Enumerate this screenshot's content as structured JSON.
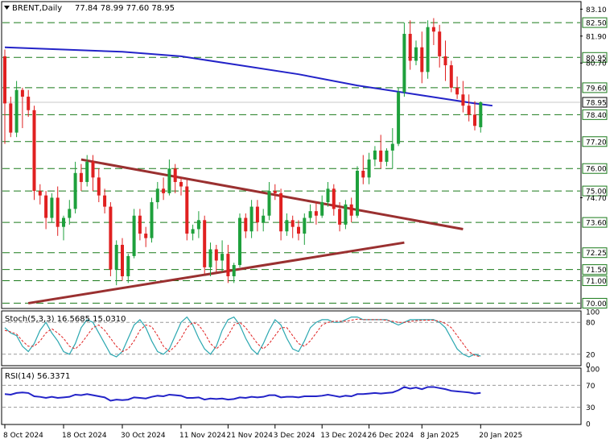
{
  "chart_data": [
    {
      "type": "candlestick",
      "title": "BRENT,Daily",
      "ohlc_readout": "77.84 78.99 77.60 78.95",
      "ylim": [
        69.8,
        83.4
      ],
      "last_price": "78.95",
      "price_levels": [
        "82.50",
        "80.95",
        "79.60",
        "78.40",
        "77.20",
        "76.00",
        "75.00",
        "73.60",
        "72.25",
        "71.50",
        "71.00",
        "70.00"
      ],
      "axis_ticks": [
        "83.10",
        "81.90",
        "80.70",
        "74.70"
      ],
      "x_tick_labels": [
        "8 Oct 2024",
        "18 Oct 2024",
        "30 Oct 2024",
        "11 Nov 2024",
        "21 Nov 2024",
        "3 Dec 2024",
        "13 Dec 2024",
        "26 Dec 2024",
        "8 Jan 2025",
        "20 Jan 2025"
      ],
      "x_tick_index": [
        0,
        10,
        20,
        30,
        38,
        46,
        54,
        62,
        71,
        81
      ],
      "candles": [
        [
          81.0,
          81.3,
          77.1,
          78.9
        ],
        [
          78.9,
          79.2,
          77.4,
          77.6
        ],
        [
          77.6,
          79.9,
          77.4,
          79.5
        ],
        [
          79.5,
          79.6,
          77.8,
          79.2
        ],
        [
          79.2,
          79.5,
          78.3,
          78.6
        ],
        [
          78.6,
          78.8,
          74.6,
          75.0
        ],
        [
          75.0,
          75.3,
          74.4,
          74.8
        ],
        [
          74.8,
          75.0,
          73.3,
          73.8
        ],
        [
          73.8,
          74.9,
          73.6,
          74.7
        ],
        [
          74.7,
          75.2,
          73.0,
          73.4
        ],
        [
          73.4,
          73.9,
          72.8,
          73.8
        ],
        [
          73.8,
          74.6,
          73.5,
          74.2
        ],
        [
          74.2,
          76.3,
          74.0,
          75.8
        ],
        [
          75.8,
          76.2,
          75.0,
          75.4
        ],
        [
          75.4,
          76.6,
          75.2,
          76.3
        ],
        [
          76.3,
          76.6,
          75.0,
          75.6
        ],
        [
          75.6,
          76.0,
          74.5,
          74.8
        ],
        [
          74.8,
          75.1,
          74.0,
          74.3
        ],
        [
          74.3,
          74.5,
          71.2,
          71.5
        ],
        [
          71.5,
          72.8,
          70.8,
          72.6
        ],
        [
          72.6,
          72.9,
          71.0,
          71.2
        ],
        [
          71.2,
          72.2,
          70.9,
          72.1
        ],
        [
          72.1,
          74.2,
          72.0,
          73.9
        ],
        [
          73.9,
          74.2,
          72.8,
          73.1
        ],
        [
          73.1,
          73.4,
          72.5,
          72.9
        ],
        [
          72.9,
          74.7,
          72.7,
          74.5
        ],
        [
          74.5,
          75.4,
          74.2,
          75.1
        ],
        [
          75.1,
          75.6,
          74.6,
          74.9
        ],
        [
          74.9,
          76.4,
          74.8,
          76.0
        ],
        [
          76.0,
          76.2,
          74.9,
          75.4
        ],
        [
          75.4,
          75.6,
          74.8,
          75.2
        ],
        [
          75.2,
          75.5,
          72.8,
          73.1
        ],
        [
          73.1,
          73.5,
          72.8,
          73.3
        ],
        [
          73.3,
          74.1,
          72.9,
          73.7
        ],
        [
          73.7,
          73.9,
          71.3,
          71.6
        ],
        [
          71.6,
          72.7,
          71.2,
          72.4
        ],
        [
          72.4,
          72.6,
          71.4,
          71.9
        ],
        [
          71.9,
          72.8,
          71.4,
          72.2
        ],
        [
          72.2,
          72.6,
          70.9,
          71.2
        ],
        [
          71.2,
          71.8,
          70.9,
          71.7
        ],
        [
          71.7,
          74.0,
          71.6,
          73.8
        ],
        [
          73.8,
          74.0,
          72.9,
          73.2
        ],
        [
          73.2,
          74.6,
          72.9,
          74.3
        ],
        [
          74.3,
          74.6,
          73.2,
          73.6
        ],
        [
          73.6,
          74.2,
          73.2,
          73.9
        ],
        [
          73.9,
          75.4,
          73.7,
          75.0
        ],
        [
          75.0,
          75.3,
          74.6,
          74.9
        ],
        [
          74.9,
          75.1,
          72.8,
          73.2
        ],
        [
          73.2,
          74.0,
          73.0,
          73.7
        ],
        [
          73.7,
          73.9,
          72.9,
          73.4
        ],
        [
          73.4,
          73.7,
          72.8,
          73.1
        ],
        [
          73.1,
          74.0,
          72.6,
          73.8
        ],
        [
          73.8,
          74.4,
          73.6,
          74.1
        ],
        [
          74.1,
          74.5,
          73.5,
          73.9
        ],
        [
          73.9,
          74.8,
          73.8,
          74.5
        ],
        [
          74.5,
          75.4,
          74.3,
          75.1
        ],
        [
          75.1,
          75.3,
          73.9,
          74.2
        ],
        [
          74.2,
          74.5,
          73.2,
          73.5
        ],
        [
          73.5,
          74.6,
          73.3,
          74.4
        ],
        [
          74.4,
          74.7,
          73.6,
          73.9
        ],
        [
          73.9,
          76.1,
          73.8,
          75.9
        ],
        [
          75.9,
          76.6,
          75.3,
          75.6
        ],
        [
          75.6,
          76.7,
          75.3,
          76.4
        ],
        [
          76.4,
          77.0,
          76.1,
          76.8
        ],
        [
          76.8,
          77.5,
          76.0,
          76.3
        ],
        [
          76.3,
          76.9,
          76.1,
          76.8
        ],
        [
          76.8,
          77.8,
          76.0,
          77.1
        ],
        [
          77.1,
          79.6,
          77.0,
          79.4
        ],
        [
          79.4,
          82.5,
          79.2,
          82.0
        ],
        [
          82.0,
          82.6,
          80.4,
          80.8
        ],
        [
          80.8,
          81.7,
          80.6,
          81.4
        ],
        [
          81.4,
          82.1,
          79.8,
          80.3
        ],
        [
          80.3,
          82.6,
          80.0,
          82.3
        ],
        [
          82.3,
          82.7,
          81.5,
          82.1
        ],
        [
          82.1,
          82.4,
          80.5,
          81.0
        ],
        [
          81.0,
          81.7,
          79.9,
          80.6
        ],
        [
          80.6,
          80.8,
          79.4,
          79.6
        ],
        [
          79.6,
          80.1,
          79.1,
          79.3
        ],
        [
          79.3,
          79.9,
          78.5,
          78.8
        ],
        [
          78.8,
          79.3,
          78.1,
          78.4
        ],
        [
          78.4,
          79.0,
          77.7,
          77.9
        ],
        [
          77.84,
          78.99,
          77.6,
          78.95
        ]
      ],
      "moving_average": [
        {
          "i": 0,
          "v": 81.4
        },
        {
          "i": 10,
          "v": 81.3
        },
        {
          "i": 20,
          "v": 81.2
        },
        {
          "i": 30,
          "v": 81.0
        },
        {
          "i": 40,
          "v": 80.6
        },
        {
          "i": 50,
          "v": 80.2
        },
        {
          "i": 60,
          "v": 79.7
        },
        {
          "i": 70,
          "v": 79.3
        },
        {
          "i": 80,
          "v": 78.9
        },
        {
          "i": 83,
          "v": 78.8
        }
      ],
      "trendlines": [
        {
          "from": {
            "i": 13,
            "v": 76.4
          },
          "to": {
            "i": 78,
            "v": 73.3
          }
        },
        {
          "from": {
            "i": 4,
            "v": 70.0
          },
          "to": {
            "i": 68,
            "v": 72.7
          }
        }
      ]
    },
    {
      "type": "line",
      "title": "Stoch(5,3,3) 16.5685 15.0310",
      "ylim": [
        0,
        100
      ],
      "ticks": [
        "100",
        "80",
        "20",
        "0"
      ],
      "levels": [
        80,
        20
      ],
      "k": [
        70,
        60,
        55,
        35,
        25,
        40,
        65,
        80,
        60,
        45,
        25,
        20,
        40,
        70,
        85,
        80,
        60,
        40,
        20,
        15,
        25,
        50,
        75,
        85,
        70,
        45,
        25,
        20,
        30,
        55,
        80,
        90,
        75,
        50,
        30,
        20,
        35,
        65,
        85,
        90,
        75,
        50,
        30,
        20,
        40,
        65,
        85,
        75,
        50,
        30,
        25,
        45,
        70,
        80,
        85,
        85,
        80,
        80,
        85,
        90,
        90,
        85,
        85,
        85,
        85,
        85,
        80,
        75,
        80,
        85,
        85,
        85,
        85,
        85,
        80,
        70,
        50,
        30,
        20,
        15,
        20,
        16.6
      ],
      "d": [
        65,
        62,
        58,
        45,
        35,
        35,
        45,
        60,
        68,
        60,
        50,
        35,
        30,
        40,
        55,
        70,
        75,
        65,
        50,
        35,
        25,
        30,
        45,
        65,
        75,
        72,
        55,
        35,
        25,
        35,
        50,
        70,
        80,
        75,
        60,
        40,
        30,
        40,
        55,
        75,
        80,
        70,
        55,
        40,
        30,
        40,
        55,
        70,
        70,
        55,
        40,
        35,
        45,
        60,
        75,
        80,
        82,
        82,
        82,
        84,
        86,
        85,
        85,
        85,
        85,
        84,
        82,
        80,
        80,
        82,
        83,
        84,
        84,
        84,
        82,
        78,
        70,
        55,
        40,
        25,
        18,
        15.0
      ]
    },
    {
      "type": "line",
      "title": "RSI(14) 56.3371",
      "ylim": [
        0,
        100
      ],
      "ticks": [
        "100",
        "70",
        "30",
        "0"
      ],
      "levels": [
        70,
        30
      ],
      "values": [
        54,
        53,
        56,
        57,
        56,
        50,
        49,
        47,
        49,
        47,
        48,
        49,
        53,
        52,
        54,
        52,
        50,
        48,
        42,
        44,
        43,
        44,
        48,
        47,
        46,
        49,
        51,
        50,
        53,
        52,
        51,
        47,
        47,
        48,
        44,
        46,
        45,
        46,
        44,
        45,
        48,
        47,
        49,
        48,
        49,
        52,
        52,
        48,
        49,
        49,
        48,
        50,
        50,
        50,
        51,
        53,
        51,
        49,
        51,
        50,
        54,
        54,
        55,
        56,
        55,
        56,
        57,
        61,
        67,
        64,
        66,
        63,
        67,
        67,
        65,
        63,
        60,
        59,
        58,
        57,
        55,
        56.3
      ]
    },
    {
      "type": "axis",
      "name": "time-axis"
    }
  ]
}
